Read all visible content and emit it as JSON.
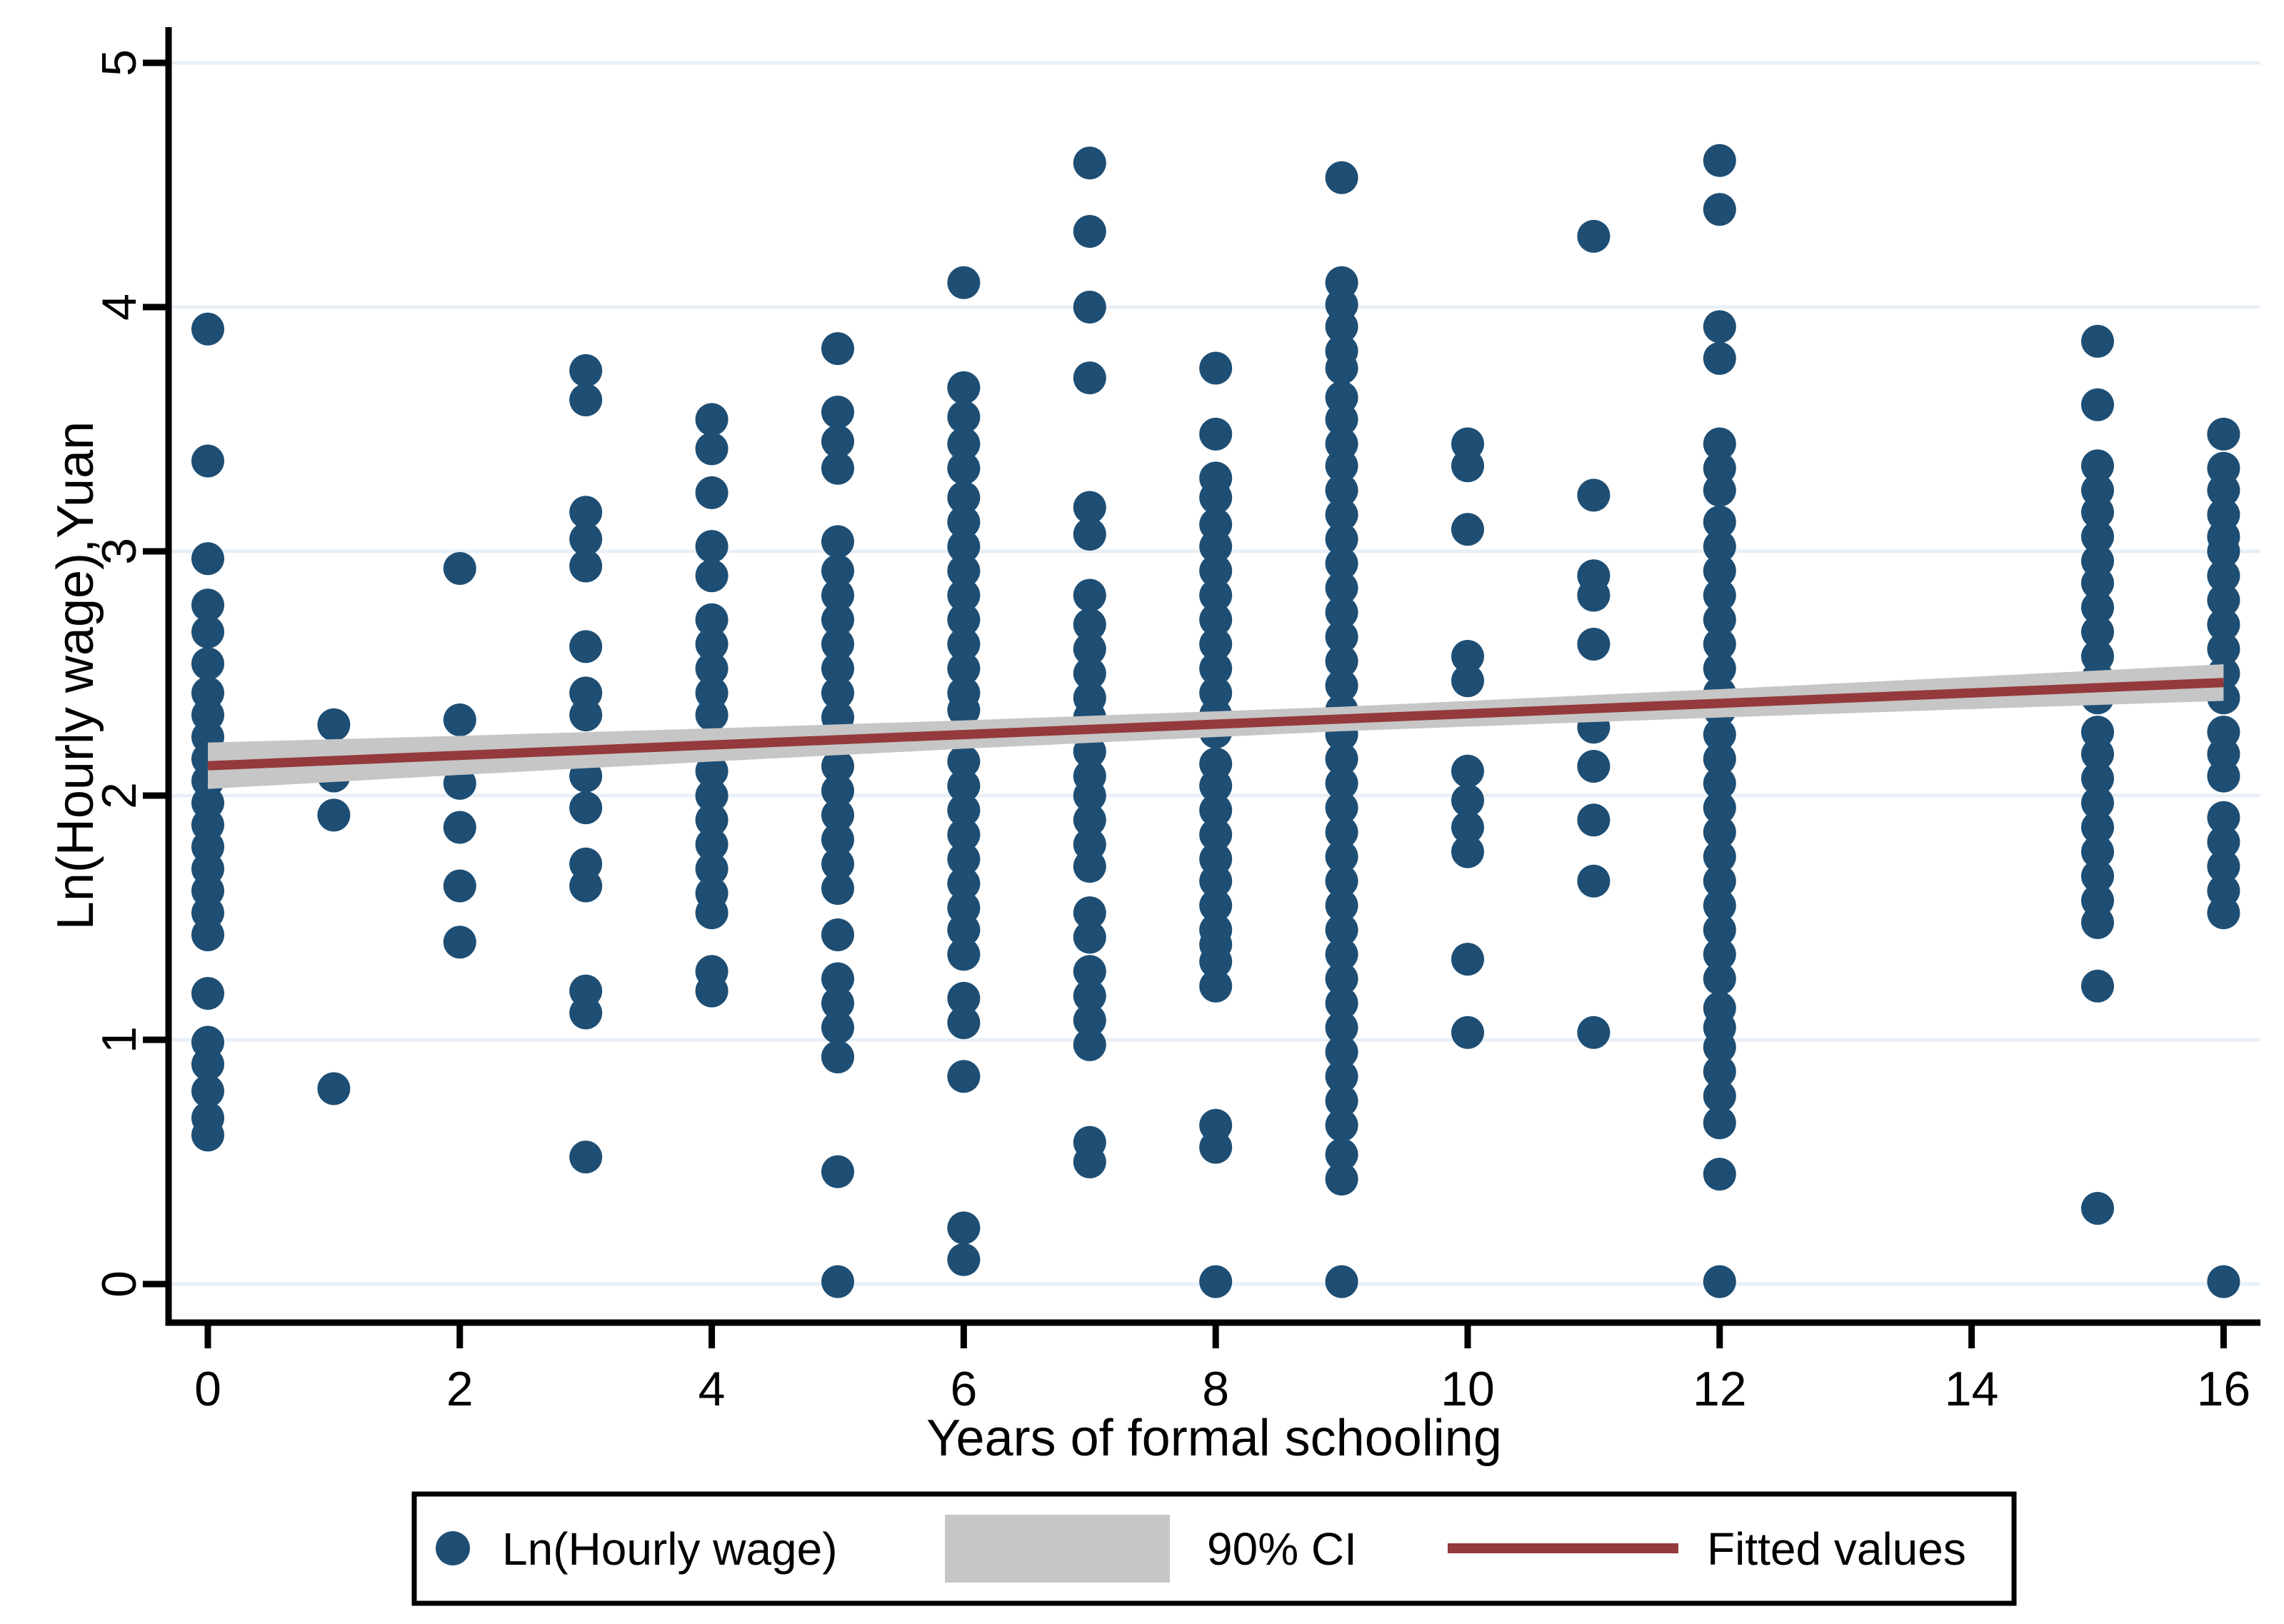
{
  "chart_data": {
    "type": "scatter",
    "title": "",
    "xlabel": "Years of formal schooling",
    "ylabel": "Ln(Hourly wage),Yuan",
    "xlim": [
      0,
      16
    ],
    "ylim": [
      0,
      5
    ],
    "x_ticks": [
      0,
      2,
      4,
      6,
      8,
      10,
      12,
      14,
      16
    ],
    "y_ticks": [
      0,
      1,
      2,
      3,
      4,
      5
    ],
    "grid": true,
    "legend_position": "bottom",
    "series": [
      {
        "name": "Ln(Hourly wage)",
        "type": "scatter",
        "color": "#1e4e74",
        "columns": [
          {
            "x": 0,
            "ys": [
              3.91,
              3.37,
              2.97,
              2.78,
              2.67,
              2.54,
              2.42,
              2.33,
              2.24,
              2.15,
              2.06,
              1.97,
              1.88,
              1.79,
              1.7,
              1.61,
              1.52,
              1.43,
              1.19,
              0.99,
              0.9,
              0.79,
              0.68,
              0.61
            ]
          },
          {
            "x": 1,
            "ys": [
              2.29,
              2.08,
              1.92,
              0.8
            ]
          },
          {
            "x": 2,
            "ys": [
              2.93,
              2.31,
              2.05,
              1.87,
              1.63,
              1.4
            ]
          },
          {
            "x": 3,
            "ys": [
              3.74,
              3.62,
              3.16,
              3.05,
              2.94,
              2.61,
              2.42,
              2.33,
              2.08,
              1.95,
              1.72,
              1.63,
              1.2,
              1.11,
              0.52
            ]
          },
          {
            "x": 4,
            "ys": [
              3.54,
              3.42,
              3.24,
              3.02,
              2.9,
              2.72,
              2.62,
              2.52,
              2.42,
              2.33,
              2.1,
              2.0,
              1.9,
              1.8,
              1.7,
              1.6,
              1.52,
              1.28,
              1.2
            ]
          },
          {
            "x": 5,
            "ys": [
              3.83,
              3.57,
              3.45,
              3.34,
              3.04,
              2.92,
              2.82,
              2.72,
              2.62,
              2.52,
              2.42,
              2.32,
              2.12,
              2.02,
              1.92,
              1.82,
              1.72,
              1.62,
              1.43,
              1.25,
              1.15,
              1.05,
              0.93,
              0.46,
              0.01
            ]
          },
          {
            "x": 6,
            "ys": [
              4.1,
              3.67,
              3.55,
              3.44,
              3.34,
              3.22,
              3.12,
              3.02,
              2.92,
              2.82,
              2.72,
              2.62,
              2.52,
              2.42,
              2.35,
              2.14,
              2.04,
              1.94,
              1.84,
              1.74,
              1.64,
              1.54,
              1.45,
              1.35,
              1.17,
              1.07,
              0.85,
              0.23,
              0.1
            ]
          },
          {
            "x": 7,
            "ys": [
              4.59,
              4.31,
              4.0,
              3.71,
              3.18,
              3.07,
              2.82,
              2.7,
              2.6,
              2.5,
              2.4,
              2.32,
              2.18,
              2.08,
              2.0,
              1.9,
              1.8,
              1.71,
              1.52,
              1.42,
              1.28,
              1.18,
              1.08,
              0.98,
              0.58,
              0.5
            ]
          },
          {
            "x": 8,
            "ys": [
              3.75,
              3.48,
              3.3,
              3.22,
              3.11,
              3.02,
              2.92,
              2.82,
              2.72,
              2.62,
              2.52,
              2.42,
              2.33,
              2.26,
              2.13,
              2.04,
              1.94,
              1.84,
              1.74,
              1.65,
              1.55,
              1.45,
              1.39,
              1.32,
              1.22,
              0.65,
              0.56,
              0.01
            ]
          },
          {
            "x": 9,
            "ys": [
              4.53,
              4.1,
              4.01,
              3.92,
              3.82,
              3.75,
              3.63,
              3.54,
              3.44,
              3.35,
              3.25,
              3.15,
              3.05,
              2.95,
              2.85,
              2.75,
              2.65,
              2.55,
              2.45,
              2.35,
              2.25,
              2.15,
              2.05,
              1.95,
              1.85,
              1.75,
              1.65,
              1.55,
              1.45,
              1.35,
              1.25,
              1.15,
              1.05,
              0.95,
              0.85,
              0.75,
              0.65,
              0.53,
              0.43,
              0.01
            ]
          },
          {
            "x": 10,
            "ys": [
              3.44,
              3.35,
              3.09,
              2.57,
              2.47,
              2.1,
              1.98,
              1.87,
              1.77,
              1.33,
              1.03
            ]
          },
          {
            "x": 11,
            "ys": [
              4.29,
              3.23,
              2.9,
              2.82,
              2.62,
              2.28,
              2.12,
              1.9,
              1.65,
              1.03
            ]
          },
          {
            "x": 12,
            "ys": [
              4.6,
              4.4,
              3.92,
              3.79,
              3.44,
              3.34,
              3.25,
              3.12,
              3.02,
              2.92,
              2.82,
              2.72,
              2.62,
              2.52,
              2.42,
              2.35,
              2.25,
              2.15,
              2.05,
              1.95,
              1.85,
              1.75,
              1.65,
              1.55,
              1.45,
              1.35,
              1.25,
              1.13,
              1.05,
              0.97,
              0.87,
              0.77,
              0.66,
              0.45,
              0.01
            ]
          },
          {
            "x": 15,
            "ys": [
              3.86,
              3.6,
              3.35,
              3.25,
              3.16,
              3.06,
              2.96,
              2.87,
              2.77,
              2.67,
              2.57,
              2.48,
              2.4,
              2.26,
              2.17,
              2.07,
              1.97,
              1.87,
              1.77,
              1.67,
              1.57,
              1.48,
              1.22,
              0.31
            ]
          },
          {
            "x": 16,
            "ys": [
              3.48,
              3.34,
              3.25,
              3.15,
              3.06,
              3.0,
              2.9,
              2.8,
              2.7,
              2.6,
              2.5,
              2.4,
              2.26,
              2.17,
              2.08,
              1.91,
              1.81,
              1.71,
              1.61,
              1.52,
              0.01
            ]
          }
        ]
      },
      {
        "name": "90% CI",
        "type": "band",
        "color": "#c6c6c6",
        "intercept": 2.122,
        "slope": 0.0213,
        "halfwidth_points": [
          [
            0,
            0.095
          ],
          [
            2,
            0.08
          ],
          [
            4,
            0.068
          ],
          [
            6,
            0.058
          ],
          [
            9,
            0.05
          ],
          [
            12,
            0.058
          ],
          [
            14,
            0.066
          ],
          [
            16,
            0.075
          ]
        ]
      },
      {
        "name": "Fitted values",
        "type": "line",
        "color": "#943a3c",
        "intercept": 2.122,
        "slope": 0.0213,
        "x_range": [
          0,
          16
        ]
      }
    ]
  },
  "legend": {
    "items": [
      {
        "label": "Ln(Hourly wage)",
        "marker": "dot"
      },
      {
        "label": "90% CI",
        "marker": "band"
      },
      {
        "label": "Fitted values",
        "marker": "line"
      }
    ]
  },
  "colors": {
    "scatter": "#1e4e74",
    "band": "#c6c6c6",
    "fitted_line": "#943a3c",
    "gridline": "#e8eff7",
    "axis": "#000000",
    "background": "#ffffff"
  }
}
